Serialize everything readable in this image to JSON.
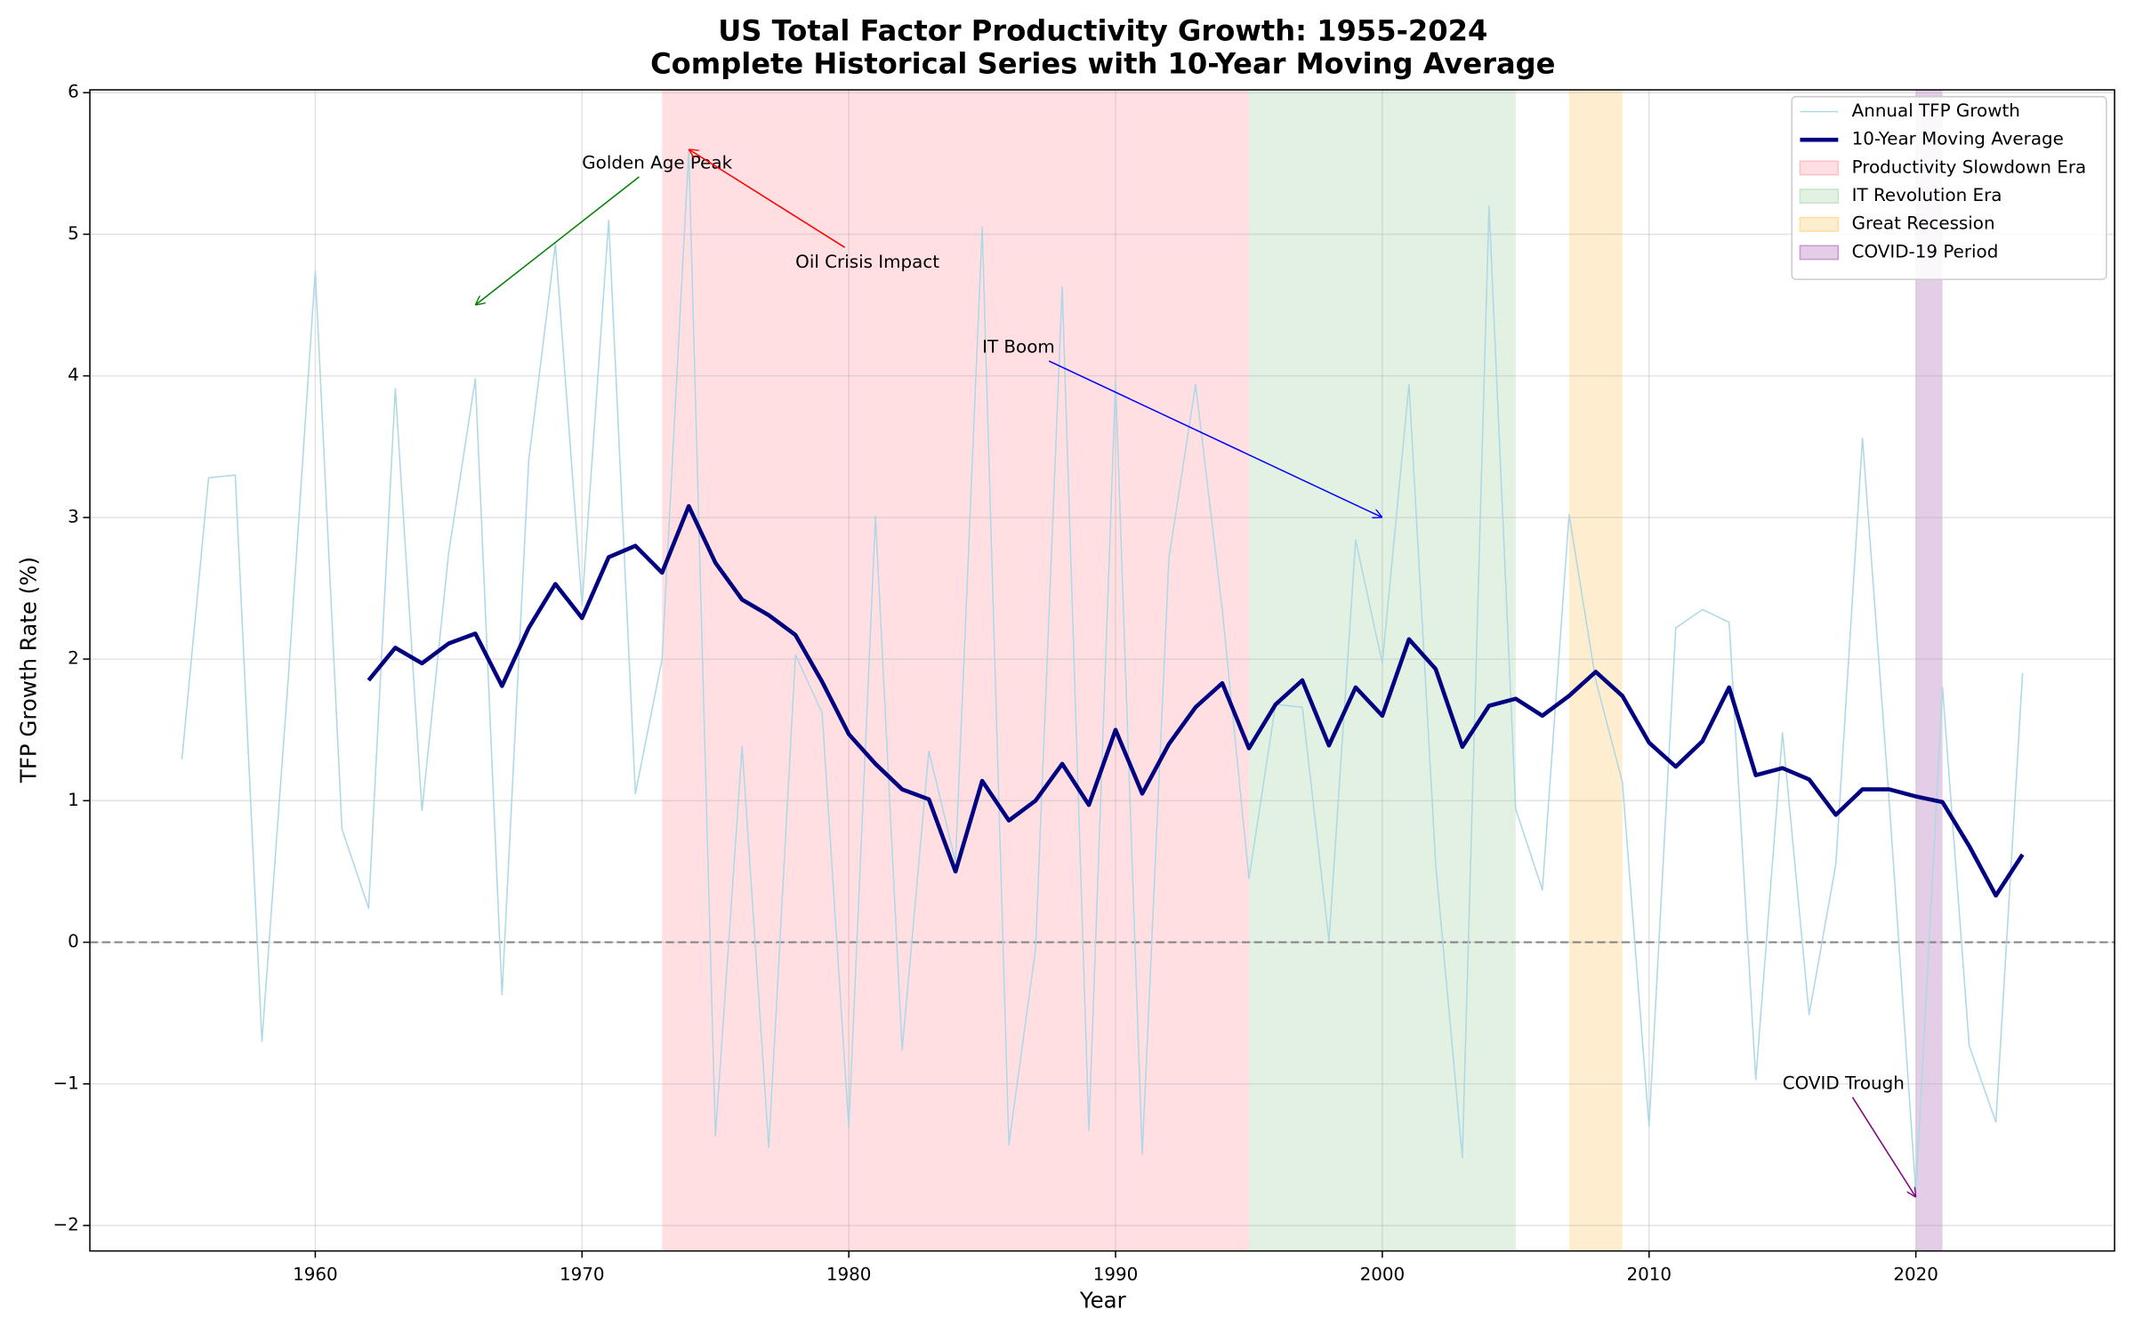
{
  "chart_data": {
    "type": "line",
    "title": "US Total Factor Productivity Growth: 1955-2024",
    "subtitle": "Complete Historical Series with 10-Year Moving Average",
    "x_label": "Year",
    "y_label": "TFP Growth Rate (%)",
    "x": [
      1955,
      1956,
      1957,
      1958,
      1959,
      1960,
      1961,
      1962,
      1963,
      1964,
      1965,
      1966,
      1967,
      1968,
      1969,
      1970,
      1971,
      1972,
      1973,
      1974,
      1975,
      1976,
      1977,
      1978,
      1979,
      1980,
      1981,
      1982,
      1983,
      1984,
      1985,
      1986,
      1987,
      1988,
      1989,
      1990,
      1991,
      1992,
      1993,
      1994,
      1995,
      1996,
      1997,
      1998,
      1999,
      2000,
      2001,
      2002,
      2003,
      2004,
      2005,
      2006,
      2007,
      2008,
      2009,
      2010,
      2011,
      2012,
      2013,
      2014,
      2015,
      2016,
      2017,
      2018,
      2019,
      2020,
      2021,
      2022,
      2023,
      2024
    ],
    "series": [
      {
        "name": "Annual TFP Growth",
        "color": "#add8e6",
        "width": 1,
        "values": [
          1.29,
          3.28,
          3.3,
          -0.7,
          1.9,
          4.74,
          0.8,
          0.24,
          3.91,
          0.93,
          2.75,
          3.98,
          -0.37,
          3.4,
          4.93,
          2.38,
          5.1,
          1.05,
          2.0,
          5.6,
          -1.37,
          1.38,
          -1.45,
          2.03,
          1.62,
          -1.31,
          3.01,
          -0.76,
          1.35,
          0.57,
          5.05,
          -1.43,
          -0.05,
          4.63,
          -1.33,
          3.96,
          -1.5,
          2.71,
          3.94,
          2.35,
          0.45,
          1.68,
          1.66,
          0.01,
          2.84,
          1.97,
          3.94,
          0.55,
          -1.52,
          5.2,
          0.94,
          0.37,
          3.02,
          1.85,
          1.13,
          -1.3,
          2.22,
          2.35,
          2.26,
          -0.97,
          1.48,
          -0.51,
          0.55,
          3.56,
          1.0,
          -1.77,
          1.8,
          -0.73,
          -1.27,
          1.9
        ]
      },
      {
        "name": "10-Year Moving Average",
        "color": "#000080",
        "width": 3,
        "values": [
          null,
          null,
          null,
          null,
          null,
          null,
          null,
          1.85,
          2.08,
          1.97,
          2.11,
          2.18,
          1.81,
          2.22,
          2.53,
          2.29,
          2.72,
          2.8,
          2.61,
          3.08,
          2.68,
          2.42,
          2.31,
          2.17,
          1.84,
          1.47,
          1.26,
          1.08,
          1.01,
          0.5,
          1.14,
          0.86,
          1.0,
          1.26,
          0.97,
          1.5,
          1.05,
          1.4,
          1.66,
          1.83,
          1.37,
          1.68,
          1.85,
          1.39,
          1.8,
          1.6,
          2.14,
          1.93,
          1.38,
          1.67,
          1.72,
          1.6,
          1.74,
          1.91,
          1.74,
          1.41,
          1.24,
          1.42,
          1.8,
          1.18,
          1.23,
          1.15,
          0.9,
          1.08,
          1.08,
          1.03,
          0.99,
          0.68,
          0.33,
          0.62
        ]
      }
    ],
    "spans": [
      {
        "name": "Productivity Slowdown Era",
        "start": 1973,
        "end": 1995,
        "color": "#ffc0c6"
      },
      {
        "name": "IT Revolution Era",
        "start": 1995,
        "end": 2005,
        "color": "#c8e3c8"
      },
      {
        "name": "Great Recession",
        "start": 2007,
        "end": 2009,
        "color": "#ffdca0"
      },
      {
        "name": "COVID-19 Period",
        "start": 2020,
        "end": 2021,
        "color": "#c79bd0"
      }
    ],
    "annotations": [
      {
        "text": "Golden Age Peak",
        "color": "green",
        "xy": [
          1966,
          4.5
        ],
        "xytext": [
          1970,
          5.5
        ]
      },
      {
        "text": "Oil Crisis Impact",
        "color": "red",
        "xy": [
          1974,
          5.6
        ],
        "xytext": [
          1978,
          4.8
        ]
      },
      {
        "text": "IT Boom",
        "color": "blue",
        "xy": [
          2000,
          3.0
        ],
        "xytext": [
          1985,
          4.2
        ]
      },
      {
        "text": "COVID Trough",
        "color": "purple",
        "xy": [
          2020,
          -1.8
        ],
        "xytext": [
          2015,
          -1.0
        ]
      }
    ],
    "hline": 0,
    "xlim": [
      1951.55,
      2027.45
    ],
    "ylim": [
      -2.18,
      6.02
    ],
    "xticks": [
      1960,
      1970,
      1980,
      1990,
      2000,
      2010,
      2020
    ],
    "yticks": [
      {
        "value": -2,
        "label": "−2"
      },
      {
        "value": -1,
        "label": "−1"
      },
      0,
      1,
      2,
      3,
      4,
      5,
      6
    ],
    "grid": true,
    "legend": "upper right"
  }
}
